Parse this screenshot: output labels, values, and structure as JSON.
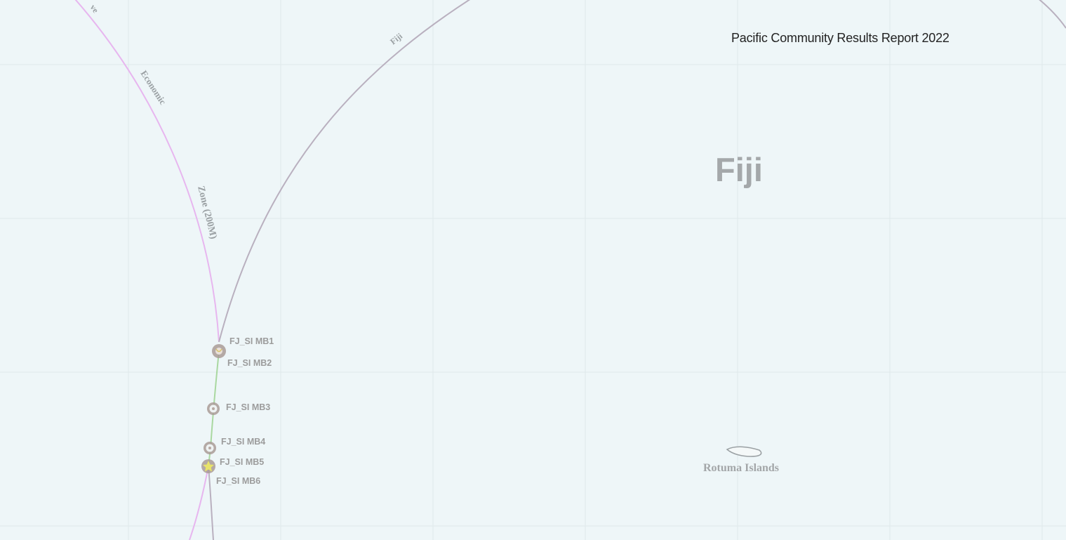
{
  "header": {
    "title": "Pacific Community Results Report 2022"
  },
  "map": {
    "country_label": "Fiji",
    "island_label": "Rotuma Islands",
    "boundary_labels": {
      "fiji_eez": "Fiji",
      "eez_word_1": "Economic",
      "eez_word_2": "Zone (200M)",
      "eez_word_partial": "ve"
    },
    "maritime_boundary_points": [
      {
        "label": "FJ_SI MB1",
        "symbol": "circle-marker"
      },
      {
        "label": "FJ_SI MB2",
        "symbol": "circle-marker"
      },
      {
        "label": "FJ_SI MB3",
        "symbol": "circle-marker"
      },
      {
        "label": "FJ_SI MB4",
        "symbol": "circle-marker"
      },
      {
        "label": "FJ_SI MB5",
        "symbol": "star-marker"
      },
      {
        "label": "FJ_SI MB6",
        "symbol": "circle-marker"
      }
    ],
    "colors": {
      "ocean": "#eef6f8",
      "fiji_eez_line": "#b9b0bf",
      "neighbour_eez_line": "#e7b6ef",
      "shared_boundary_line": "#a9d8a0",
      "marker": "#a99b96",
      "star": "#e8e36a",
      "label_text": "#9c9c9c"
    }
  }
}
